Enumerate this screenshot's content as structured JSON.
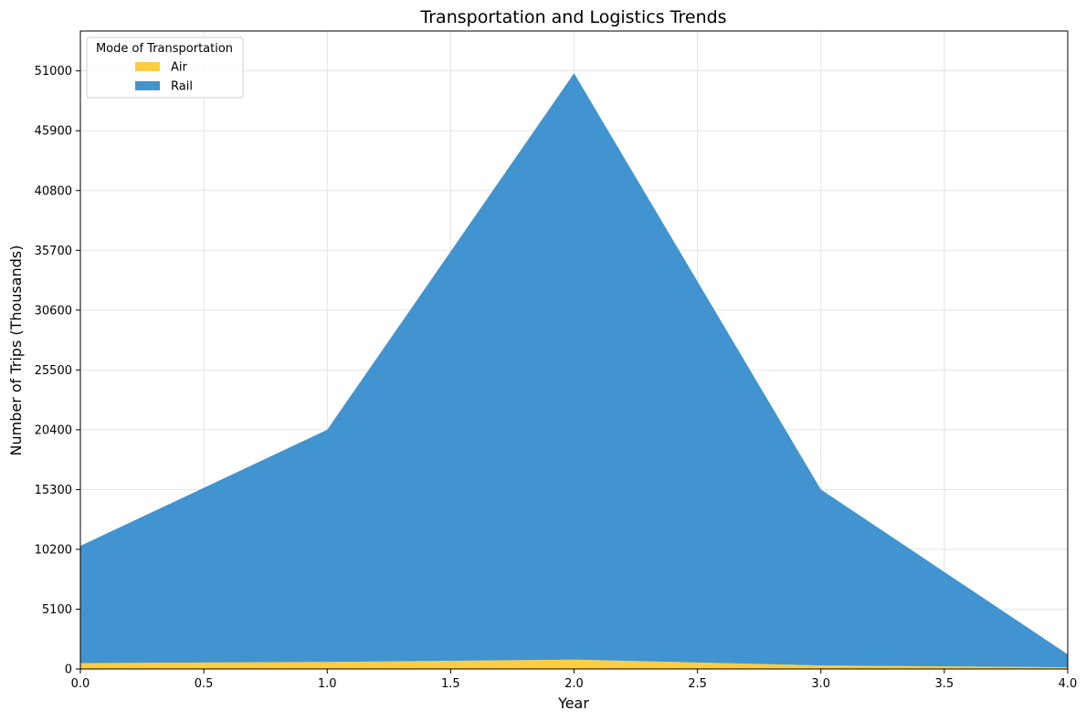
{
  "chart_data": {
    "type": "area",
    "stacked": true,
    "title": "Transportation and Logistics Trends",
    "xlabel": "Year",
    "ylabel": "Number of Trips (Thousands)",
    "x": [
      0,
      1,
      2,
      3,
      4
    ],
    "xlim": [
      0,
      4
    ],
    "ylim": [
      0,
      54400
    ],
    "xticks": [
      "0.0",
      "0.5",
      "1.0",
      "1.5",
      "2.0",
      "2.5",
      "3.0",
      "3.5",
      "4.0"
    ],
    "yticks": [
      "0",
      "5100",
      "10200",
      "15300",
      "20400",
      "25500",
      "30600",
      "35700",
      "40800",
      "45900",
      "51000"
    ],
    "grid": true,
    "legend": {
      "title": "Mode of Transportation",
      "placement": "top-left"
    },
    "series": [
      {
        "name": "Air",
        "color": "#ffcd42",
        "values": [
          500,
          600,
          800,
          300,
          150
        ]
      },
      {
        "name": "Rail",
        "color": "#4194cf",
        "values": [
          10000,
          19800,
          50000,
          15000,
          1100
        ]
      }
    ]
  }
}
